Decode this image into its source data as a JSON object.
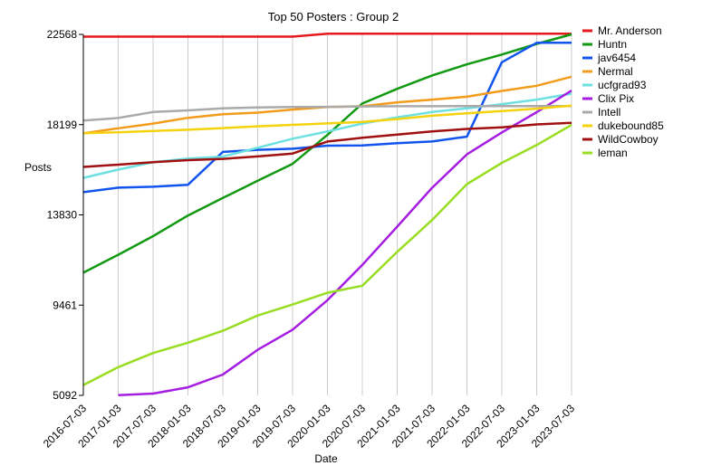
{
  "chart_data": {
    "type": "line",
    "title": "Top 50 Posters : Group 2",
    "xlabel": "Date",
    "ylabel": "Posts",
    "ylim": [
      5092,
      22568
    ],
    "yticks": [
      5092,
      9461,
      13830,
      18199,
      22568
    ],
    "x": [
      "2016-07-03",
      "2017-01-03",
      "2017-07-03",
      "2018-01-03",
      "2018-07-03",
      "2019-01-03",
      "2019-07-03",
      "2020-01-03",
      "2020-07-03",
      "2021-01-03",
      "2021-07-03",
      "2022-01-03",
      "2022-07-03",
      "2023-01-03",
      "2023-07-03"
    ],
    "grid": true,
    "legend_position": "right",
    "series": [
      {
        "name": "Mr. Anderson",
        "color": "#e41a1c",
        "values": [
          22460,
          22460,
          22460,
          22460,
          22460,
          22460,
          22460,
          22600,
          22600,
          22600,
          22600,
          22600,
          22600,
          22600,
          22600
        ]
      },
      {
        "name": "Huntn",
        "color": "#119911",
        "values": [
          11030,
          11900,
          12800,
          13800,
          14650,
          15480,
          16300,
          17700,
          19220,
          19930,
          20580,
          21120,
          21590,
          22110,
          22570
        ]
      },
      {
        "name": "jav6454",
        "color": "#1155ee",
        "values": [
          14930,
          15150,
          15190,
          15290,
          16880,
          16980,
          17030,
          17180,
          17190,
          17300,
          17380,
          17620,
          21220,
          22160,
          22160
        ]
      },
      {
        "name": "Nermal",
        "color": "#f39c1c",
        "values": [
          17780,
          18020,
          18250,
          18530,
          18700,
          18780,
          18930,
          19050,
          19090,
          19280,
          19410,
          19550,
          19830,
          20080,
          20520
        ]
      },
      {
        "name": "ucfgrad93",
        "color": "#6de0e0",
        "values": [
          15620,
          16020,
          16380,
          16560,
          16650,
          17080,
          17520,
          17870,
          18250,
          18550,
          18810,
          18990,
          19190,
          19410,
          19700
        ]
      },
      {
        "name": "Clix Pix",
        "color": "#a51de0",
        "values": [
          null,
          5100,
          5180,
          5480,
          6100,
          7300,
          8270,
          9700,
          11410,
          13260,
          15140,
          16760,
          17820,
          18800,
          19850
        ]
      },
      {
        "name": "Intell",
        "color": "#aaaaaa",
        "values": [
          18400,
          18520,
          18810,
          18890,
          18990,
          19030,
          19050,
          19060,
          19080,
          19090,
          19090,
          19100,
          19100,
          19100,
          19100
        ]
      },
      {
        "name": "dukebound85",
        "color": "#f4d20e",
        "values": [
          17780,
          17830,
          17890,
          17950,
          18030,
          18120,
          18190,
          18260,
          18330,
          18470,
          18630,
          18750,
          18860,
          18970,
          19120
        ]
      },
      {
        "name": "WildCowboy",
        "color": "#a01010",
        "values": [
          16150,
          16260,
          16380,
          16480,
          16540,
          16660,
          16800,
          17380,
          17560,
          17720,
          17870,
          17990,
          18070,
          18210,
          18290
        ]
      },
      {
        "name": "leman",
        "color": "#99dd22",
        "values": [
          5590,
          6460,
          7140,
          7640,
          8220,
          8960,
          9490,
          10060,
          10400,
          12040,
          13580,
          15320,
          16350,
          17210,
          18190
        ]
      }
    ]
  }
}
